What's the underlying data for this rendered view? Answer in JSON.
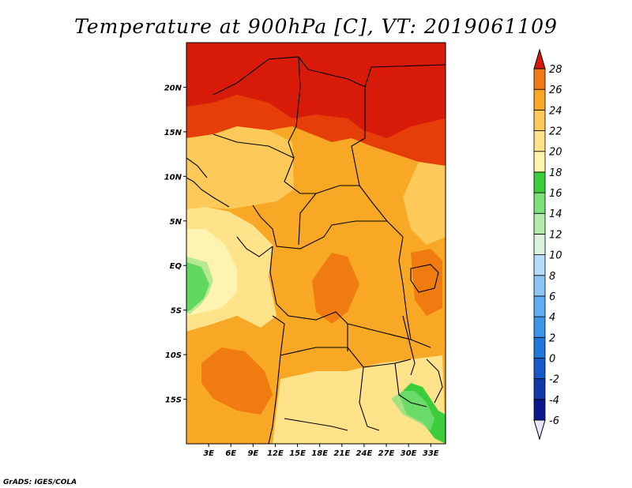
{
  "chart_data": {
    "type": "heatmap",
    "title": "Temperature at 900hPa [C], VT: 2019061109",
    "credit": "GrADS: IGES/COLA",
    "x_ticks": [
      "3E",
      "6E",
      "9E",
      "12E",
      "15E",
      "18E",
      "21E",
      "24E",
      "27E",
      "30E",
      "33E"
    ],
    "y_ticks": [
      "20N",
      "15N",
      "10N",
      "5N",
      "EQ",
      "5S",
      "10S",
      "15S"
    ],
    "lon_range": [
      0,
      35
    ],
    "lat_range": [
      -20,
      25
    ],
    "units": "C",
    "colorbar": {
      "levels": [
        -6,
        -4,
        -2,
        0,
        2,
        4,
        6,
        8,
        10,
        12,
        14,
        16,
        18,
        20,
        22,
        24,
        26,
        28
      ],
      "colors": [
        "#0a1a8a",
        "#0f3aa8",
        "#1659c8",
        "#1f78dc",
        "#3d95e8",
        "#62adef",
        "#8cc7f4",
        "#b5dcf8",
        "#dcf2dc",
        "#b6ebb0",
        "#7ee07a",
        "#3ccc3c",
        "#fff3b0",
        "#ffe38a",
        "#fdca5a",
        "#f9a826",
        "#f07b10",
        "#e63e08",
        "#d81a08"
      ],
      "under_color": "#e6e4f8",
      "over_color": "#d81a08"
    }
  }
}
